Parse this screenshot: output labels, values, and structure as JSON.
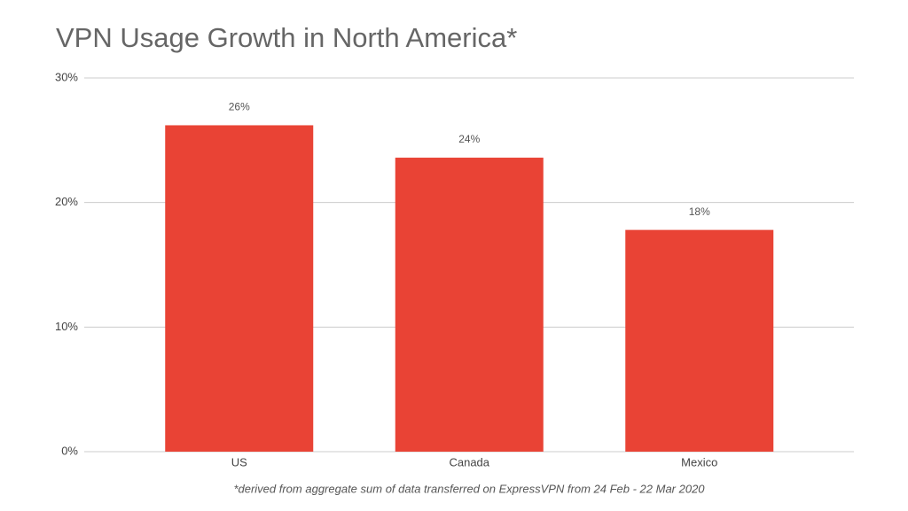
{
  "chart_data": {
    "type": "bar",
    "title": "VPN Usage Growth in North America*",
    "footnote": "*derived from aggregate sum of data transferred on ExpressVPN from 24 Feb - 22 Mar 2020",
    "categories": [
      "US",
      "Canada",
      "Mexico"
    ],
    "values": [
      26.2,
      23.6,
      17.8
    ],
    "value_labels": [
      "26%",
      "24%",
      "18%"
    ],
    "color": "#e94335",
    "ylim": [
      0,
      30
    ],
    "yticks": [
      {
        "value": 0,
        "label": "0%"
      },
      {
        "value": 10,
        "label": "10%"
      },
      {
        "value": 20,
        "label": "20%"
      },
      {
        "value": 30,
        "label": "30%"
      }
    ],
    "grid": true
  }
}
